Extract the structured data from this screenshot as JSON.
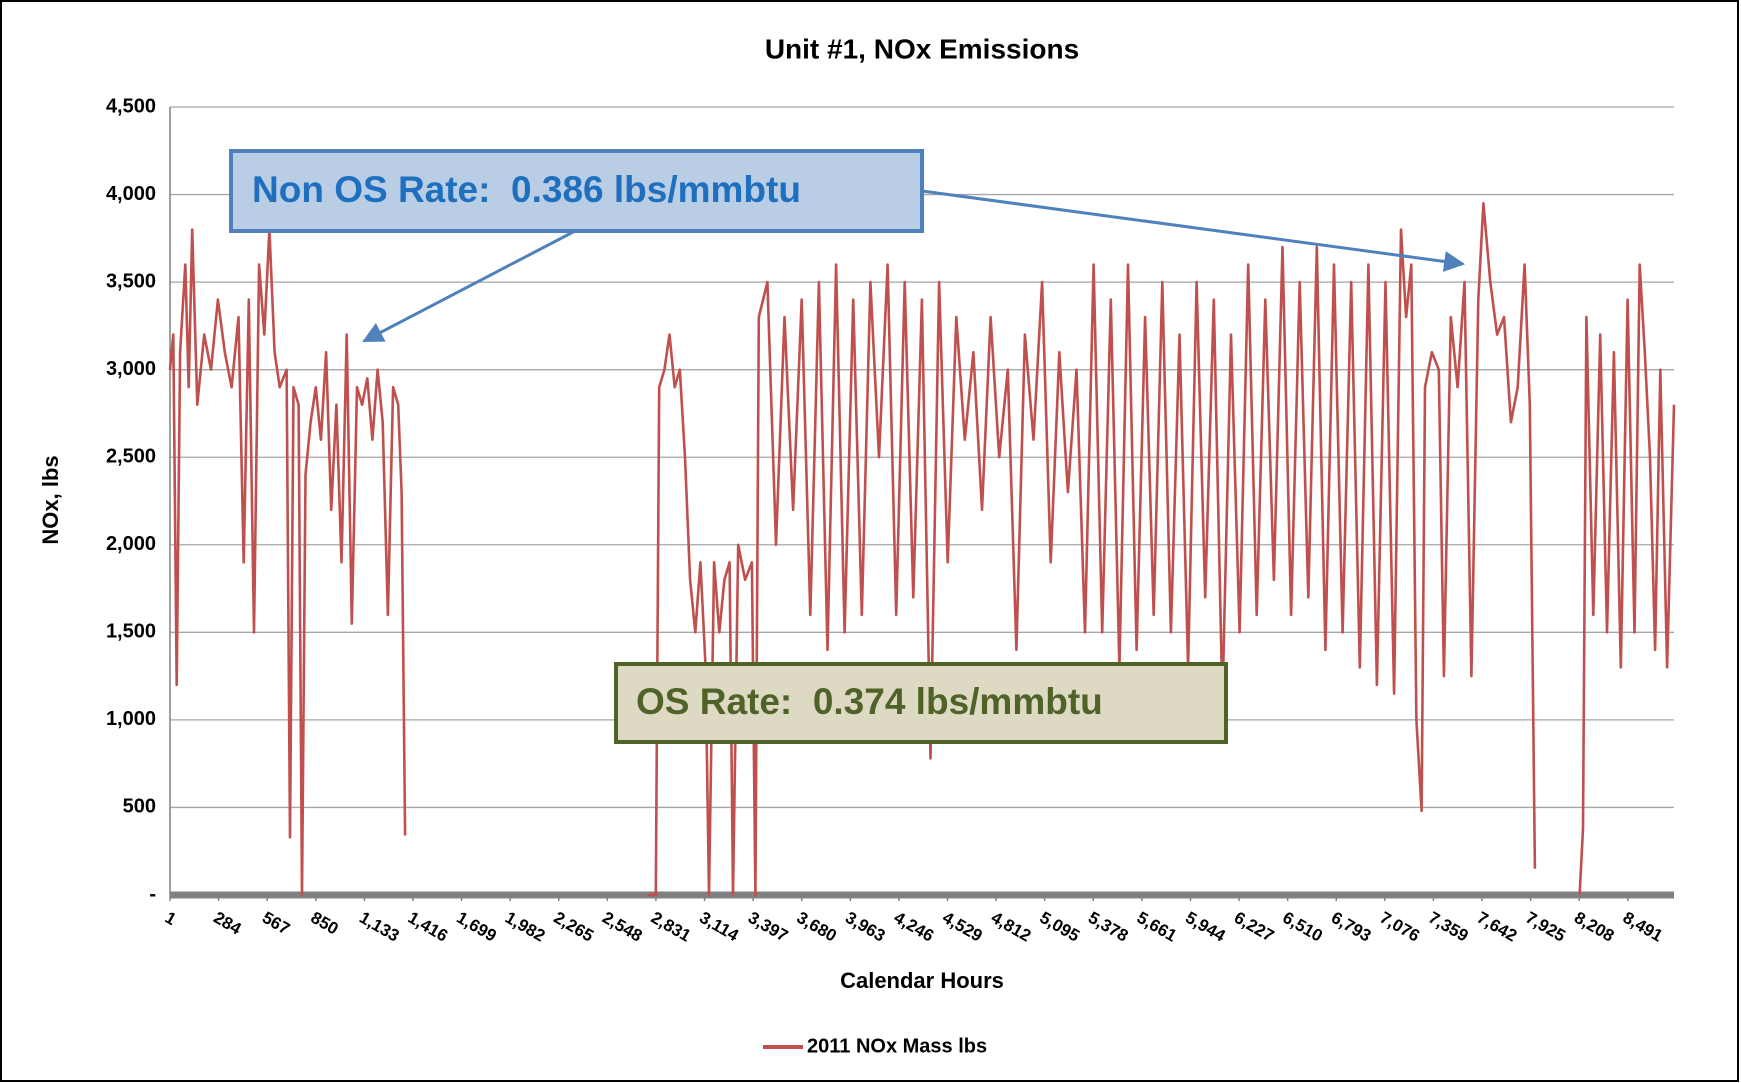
{
  "chart_data": {
    "type": "line",
    "title": "Unit #1, NOx Emissions",
    "xlabel": "Calendar Hours",
    "ylabel": "NOx, lbs",
    "annotations": [
      "Non OS Rate:  0.386 lbs/mmbtu",
      "OS Rate:  0.374 lbs/mmbtu"
    ],
    "legend": "bottom",
    "grid": true,
    "xlim": [
      1,
      8760
    ],
    "ylim": [
      0,
      4500
    ],
    "xticks": [
      1,
      284,
      567,
      850,
      {
        "value": 1133,
        "label": "1,133"
      },
      {
        "value": 1416,
        "label": "1,416"
      },
      {
        "value": 1699,
        "label": "1,699"
      },
      {
        "value": 1982,
        "label": "1,982"
      },
      {
        "value": 2265,
        "label": "2,265"
      },
      {
        "value": 2548,
        "label": "2,548"
      },
      {
        "value": 2831,
        "label": "2,831"
      },
      {
        "value": 3114,
        "label": "3,114"
      },
      {
        "value": 3397,
        "label": "3,397"
      },
      {
        "value": 3680,
        "label": "3,680"
      },
      {
        "value": 3963,
        "label": "3,963"
      },
      {
        "value": 4246,
        "label": "4,246"
      },
      {
        "value": 4529,
        "label": "4,529"
      },
      {
        "value": 4812,
        "label": "4,812"
      },
      {
        "value": 5095,
        "label": "5,095"
      },
      {
        "value": 5378,
        "label": "5,378"
      },
      {
        "value": 5661,
        "label": "5,661"
      },
      {
        "value": 5944,
        "label": "5,944"
      },
      {
        "value": 6227,
        "label": "6,227"
      },
      {
        "value": 6510,
        "label": "6,510"
      },
      {
        "value": 6793,
        "label": "6,793"
      },
      {
        "value": 7076,
        "label": "7,076"
      },
      {
        "value": 7359,
        "label": "7,359"
      },
      {
        "value": 7642,
        "label": "7,642"
      },
      {
        "value": 7925,
        "label": "7,925"
      },
      {
        "value": 8208,
        "label": "8,208"
      },
      {
        "value": 8491,
        "label": "8,491"
      }
    ],
    "yticks": [
      {
        "value": 0,
        "label": "-"
      },
      500,
      {
        "value": 1000,
        "label": "1,000"
      },
      {
        "value": 1500,
        "label": "1,500"
      },
      {
        "value": 2000,
        "label": "2,000"
      },
      {
        "value": 2500,
        "label": "2,500"
      },
      {
        "value": 3000,
        "label": "3,000"
      },
      {
        "value": 3500,
        "label": "3,500"
      },
      {
        "value": 4000,
        "label": "4,000"
      },
      {
        "value": 4500,
        "label": "4,500"
      }
    ],
    "x": [
      1,
      20,
      40,
      60,
      90,
      110,
      130,
      160,
      200,
      240,
      280,
      320,
      360,
      400,
      430,
      460,
      490,
      520,
      550,
      580,
      610,
      640,
      680,
      700,
      720,
      750,
      770,
      790,
      820,
      850,
      880,
      910,
      940,
      970,
      1000,
      1030,
      1060,
      1090,
      1120,
      1150,
      1180,
      1210,
      1240,
      1270,
      1300,
      1330,
      1350,
      1370,
      2000,
      2780,
      2800,
      2830,
      2850,
      2880,
      2910,
      2940,
      2970,
      3000,
      3030,
      3060,
      3090,
      3120,
      3140,
      3170,
      3200,
      3230,
      3260,
      3280,
      3310,
      3350,
      3390,
      3410,
      3430,
      3480,
      3530,
      3580,
      3630,
      3680,
      3730,
      3780,
      3830,
      3880,
      3930,
      3980,
      4030,
      4080,
      4130,
      4180,
      4230,
      4280,
      4330,
      4380,
      4430,
      4480,
      4530,
      4580,
      4630,
      4680,
      4730,
      4780,
      4830,
      4880,
      4930,
      4980,
      5030,
      5080,
      5130,
      5180,
      5230,
      5280,
      5330,
      5380,
      5430,
      5480,
      5530,
      5580,
      5630,
      5680,
      5730,
      5780,
      5830,
      5880,
      5930,
      5980,
      6030,
      6080,
      6130,
      6180,
      6230,
      6280,
      6330,
      6380,
      6430,
      6480,
      6530,
      6580,
      6630,
      6680,
      6730,
      6780,
      6830,
      6880,
      6930,
      6980,
      7030,
      7080,
      7130,
      7170,
      7200,
      7230,
      7260,
      7290,
      7310,
      7350,
      7390,
      7420,
      7460,
      7500,
      7540,
      7580,
      7620,
      7650,
      7690,
      7730,
      7770,
      7810,
      7850,
      7890,
      7920,
      7950,
      8080,
      8210,
      8230,
      8250,
      8290,
      8330,
      8370,
      8410,
      8450,
      8490,
      8530,
      8560,
      8590,
      8620,
      8650,
      8680,
      8720,
      8760
    ],
    "series": [
      {
        "name": "2011 NOx Mass lbs",
        "color": "#c0504d",
        "values": [
          3000,
          3200,
          1200,
          3100,
          3600,
          2900,
          3800,
          2800,
          3200,
          3000,
          3400,
          3100,
          2900,
          3300,
          1900,
          3400,
          1500,
          3600,
          3200,
          3800,
          3100,
          2900,
          3000,
          330,
          2900,
          2800,
          0,
          2400,
          2700,
          2900,
          2600,
          3100,
          2200,
          2800,
          1900,
          3200,
          1550,
          2900,
          2800,
          2950,
          2600,
          3000,
          2700,
          1600,
          2900,
          2800,
          2300,
          340,
          null,
          0,
          0,
          0,
          2900,
          3000,
          3200,
          2900,
          3000,
          2500,
          1800,
          1500,
          1900,
          1300,
          0,
          1900,
          1500,
          1800,
          1900,
          0,
          2000,
          1800,
          1900,
          0,
          3300,
          3500,
          2000,
          3300,
          2200,
          3400,
          1600,
          3500,
          1400,
          3600,
          1500,
          3400,
          1600,
          3500,
          2500,
          3600,
          1600,
          3500,
          1700,
          3400,
          780,
          3500,
          1900,
          3300,
          2600,
          3100,
          2200,
          3300,
          2500,
          3000,
          1400,
          3200,
          2600,
          3500,
          1900,
          3100,
          2300,
          3000,
          1500,
          3600,
          1500,
          3400,
          1300,
          3600,
          1400,
          3300,
          1600,
          3500,
          1500,
          3200,
          1300,
          3500,
          1700,
          3400,
          1100,
          3200,
          1500,
          3600,
          1600,
          3400,
          1800,
          3700,
          1600,
          3500,
          1700,
          3700,
          1400,
          3600,
          1500,
          3500,
          1300,
          3600,
          1200,
          3500,
          1150,
          3800,
          3300,
          3600,
          1000,
          480,
          2900,
          3100,
          3000,
          1250,
          3300,
          2900,
          3500,
          1250,
          3400,
          3950,
          3500,
          3200,
          3300,
          2700,
          2900,
          3600,
          2800,
          150,
          null,
          0,
          380,
          3300,
          1600,
          3200,
          1500,
          3100,
          1300,
          3400,
          1500,
          3600,
          3100,
          2500,
          1400,
          3000,
          1300,
          2800
        ]
      }
    ]
  }
}
